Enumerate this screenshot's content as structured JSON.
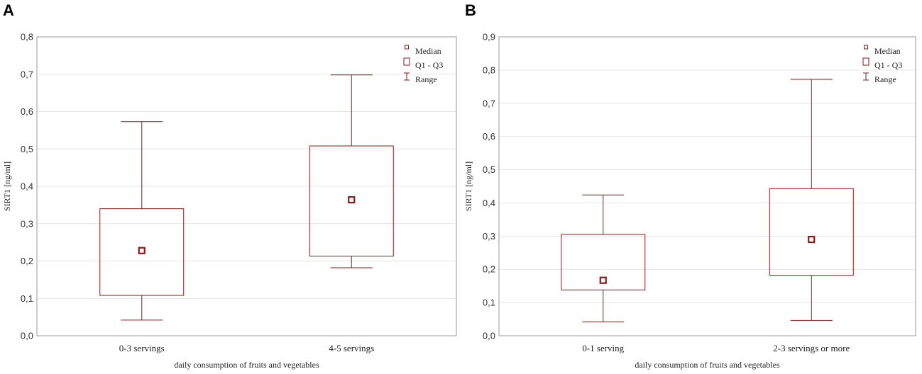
{
  "colors": {
    "box": "#8b1a1a",
    "grid": "#e6e6e6",
    "frame": "#9a9a9a"
  },
  "legend": {
    "median": "Median",
    "q1q3": "Q1 - Q3",
    "range": "Range"
  },
  "chart_data": [
    {
      "panel": "A",
      "type": "box",
      "ylabel": "SIRT1 [ng/ml]",
      "xlabel": "daily consumption of fruits and vegetables",
      "ylim": [
        0,
        0.8
      ],
      "yticks": [
        "0,0",
        "0,1",
        "0,2",
        "0,3",
        "0,4",
        "0,5",
        "0,6",
        "0,7",
        "0,8"
      ],
      "categories": [
        "0-3 servings",
        "4-5 servings"
      ],
      "boxes": [
        {
          "min": 0.042,
          "q1": 0.108,
          "median": 0.228,
          "q3": 0.34,
          "max": 0.573
        },
        {
          "min": 0.182,
          "q1": 0.213,
          "median": 0.364,
          "q3": 0.508,
          "max": 0.698
        }
      ]
    },
    {
      "panel": "B",
      "type": "box",
      "ylabel": "SIRT1 [ng/ml]",
      "xlabel": "daily consumption of fruits and vegetables",
      "ylim": [
        0,
        0.9
      ],
      "yticks": [
        "0,0",
        "0,1",
        "0,2",
        "0,3",
        "0,4",
        "0,5",
        "0,6",
        "0,7",
        "0,8",
        "0,9"
      ],
      "categories": [
        "0-1 serving",
        "2-3 servings or more"
      ],
      "boxes": [
        {
          "min": 0.042,
          "q1": 0.138,
          "median": 0.167,
          "q3": 0.305,
          "max": 0.424
        },
        {
          "min": 0.046,
          "q1": 0.182,
          "median": 0.29,
          "q3": 0.443,
          "max": 0.772
        }
      ]
    }
  ]
}
